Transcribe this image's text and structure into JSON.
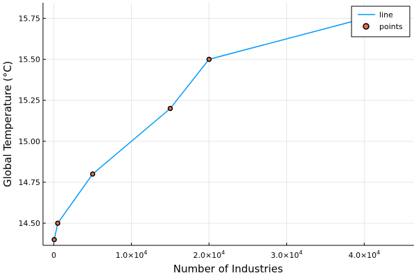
{
  "chart_data": {
    "type": "line",
    "title": "",
    "xlabel": "Number of Industries",
    "ylabel": "Global Temperature (°C)",
    "xlim": [
      -1400,
      46400
    ],
    "ylim": [
      14.365,
      15.845
    ],
    "x_ticks": [
      {
        "value": 0,
        "label": "0"
      },
      {
        "value": 10000,
        "label": "1.0×10",
        "exp": "4"
      },
      {
        "value": 20000,
        "label": "2.0×10",
        "exp": "4"
      },
      {
        "value": 30000,
        "label": "3.0×10",
        "exp": "4"
      },
      {
        "value": 40000,
        "label": "4.0×10",
        "exp": "4"
      }
    ],
    "y_ticks": [
      {
        "value": 14.5,
        "label": "14.50"
      },
      {
        "value": 14.75,
        "label": "14.75"
      },
      {
        "value": 15.0,
        "label": "15.00"
      },
      {
        "value": 15.25,
        "label": "15.25"
      },
      {
        "value": 15.5,
        "label": "15.50"
      },
      {
        "value": 15.75,
        "label": "15.75"
      }
    ],
    "grid": true,
    "legend_position": "top-right",
    "series": [
      {
        "name": "line",
        "type": "line",
        "color": "#009AFA",
        "x": [
          50,
          500,
          5000,
          15000,
          20000,
          40000
        ],
        "y": [
          14.4,
          14.5,
          14.8,
          15.2,
          15.5,
          15.75
        ]
      },
      {
        "name": "points",
        "type": "scatter",
        "color": "#E26F46",
        "x": [
          50,
          500,
          5000,
          15000,
          20000,
          40000
        ],
        "y": [
          14.4,
          14.5,
          14.8,
          15.2,
          15.5,
          15.75
        ]
      }
    ]
  }
}
